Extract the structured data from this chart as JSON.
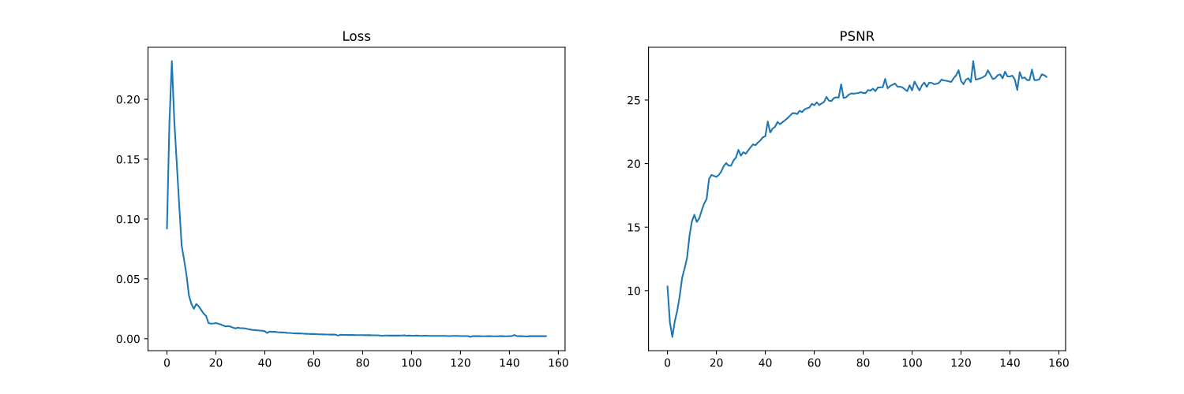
{
  "chart_data": [
    {
      "type": "line",
      "title": "Loss",
      "x": [
        0,
        1,
        2,
        3,
        4,
        5,
        6,
        7,
        8,
        9,
        10,
        11,
        12,
        13,
        14,
        15,
        16,
        17,
        18,
        19,
        20,
        21,
        22,
        23,
        24,
        25,
        26,
        27,
        28,
        29,
        30,
        31,
        32,
        33,
        34,
        35,
        36,
        37,
        38,
        39,
        40,
        41,
        42,
        43,
        44,
        45,
        46,
        47,
        48,
        49,
        50,
        51,
        52,
        53,
        54,
        55,
        56,
        57,
        58,
        59,
        60,
        61,
        62,
        63,
        64,
        65,
        66,
        67,
        68,
        69,
        70,
        71,
        72,
        73,
        74,
        75,
        76,
        77,
        78,
        79,
        80,
        81,
        82,
        83,
        84,
        85,
        86,
        87,
        88,
        89,
        90,
        91,
        92,
        93,
        94,
        95,
        96,
        97,
        98,
        99,
        100,
        101,
        102,
        103,
        104,
        105,
        106,
        107,
        108,
        109,
        110,
        111,
        112,
        113,
        114,
        115,
        116,
        117,
        118,
        119,
        120,
        121,
        122,
        123,
        124,
        125,
        126,
        127,
        128,
        129,
        130,
        131,
        132,
        133,
        134,
        135,
        136,
        137,
        138,
        139,
        140,
        141,
        142,
        143,
        144,
        145,
        146,
        147,
        148,
        149,
        150,
        151,
        152,
        153,
        154,
        155
      ],
      "series": [
        {
          "color": "#1f77b4",
          "values": [
            0.092,
            0.18,
            0.232,
            0.182,
            0.147,
            0.112,
            0.078,
            0.066,
            0.053,
            0.036,
            0.029,
            0.025,
            0.029,
            0.027,
            0.024,
            0.021,
            0.019,
            0.013,
            0.0125,
            0.0127,
            0.013,
            0.0125,
            0.0119,
            0.011,
            0.0103,
            0.0106,
            0.0101,
            0.0092,
            0.0086,
            0.0092,
            0.0088,
            0.0088,
            0.0086,
            0.0081,
            0.0077,
            0.0073,
            0.0072,
            0.007,
            0.0068,
            0.0066,
            0.0062,
            0.0048,
            0.006,
            0.0057,
            0.0057,
            0.0055,
            0.0053,
            0.0052,
            0.0051,
            0.0049,
            0.0048,
            0.0046,
            0.0045,
            0.0044,
            0.0044,
            0.0043,
            0.0042,
            0.0041,
            0.004,
            0.0039,
            0.0039,
            0.0038,
            0.0037,
            0.0037,
            0.0036,
            0.0035,
            0.0035,
            0.0034,
            0.0034,
            0.0033,
            0.0026,
            0.0033,
            0.0032,
            0.0032,
            0.0031,
            0.0031,
            0.0031,
            0.003,
            0.003,
            0.003,
            0.003,
            0.0029,
            0.0029,
            0.0029,
            0.0028,
            0.0028,
            0.0028,
            0.0027,
            0.0024,
            0.0027,
            0.0027,
            0.0026,
            0.0026,
            0.0026,
            0.0026,
            0.0026,
            0.0027,
            0.0028,
            0.0025,
            0.0026,
            0.0025,
            0.0025,
            0.0026,
            0.0025,
            0.0024,
            0.0025,
            0.0025,
            0.0024,
            0.0024,
            0.0024,
            0.0024,
            0.0024,
            0.0023,
            0.0023,
            0.0023,
            0.0022,
            0.0022,
            0.0023,
            0.0024,
            0.0023,
            0.0022,
            0.0022,
            0.0022,
            0.0022,
            0.0015,
            0.0021,
            0.0021,
            0.0021,
            0.0021,
            0.002,
            0.002,
            0.0021,
            0.0021,
            0.002,
            0.002,
            0.002,
            0.0021,
            0.0021,
            0.002,
            0.002,
            0.0021,
            0.0022,
            0.0031,
            0.0022,
            0.0021,
            0.0021,
            0.002,
            0.0019,
            0.0021,
            0.0021,
            0.0021,
            0.0022,
            0.0021,
            0.0021,
            0.0021,
            0.0021
          ]
        }
      ],
      "xlim": [
        -7.75,
        162.75
      ],
      "ylim": [
        -0.01,
        0.2435
      ],
      "xticks": [
        0,
        20,
        40,
        60,
        80,
        100,
        120,
        140,
        160
      ],
      "yticks": [
        {
          "value": 0,
          "label": "0.00"
        },
        {
          "value": 0.05,
          "label": "0.05"
        },
        {
          "value": 0.1,
          "label": "0.10"
        },
        {
          "value": 0.15,
          "label": "0.15"
        },
        {
          "value": 0.2,
          "label": "0.20"
        }
      ]
    },
    {
      "type": "line",
      "title": "PSNR",
      "x": [
        0,
        1,
        2,
        3,
        4,
        5,
        6,
        7,
        8,
        9,
        10,
        11,
        12,
        13,
        14,
        15,
        16,
        17,
        18,
        19,
        20,
        21,
        22,
        23,
        24,
        25,
        26,
        27,
        28,
        29,
        30,
        31,
        32,
        33,
        34,
        35,
        36,
        37,
        38,
        39,
        40,
        41,
        42,
        43,
        44,
        45,
        46,
        47,
        48,
        49,
        50,
        51,
        52,
        53,
        54,
        55,
        56,
        57,
        58,
        59,
        60,
        61,
        62,
        63,
        64,
        65,
        66,
        67,
        68,
        69,
        70,
        71,
        72,
        73,
        74,
        75,
        76,
        77,
        78,
        79,
        80,
        81,
        82,
        83,
        84,
        85,
        86,
        87,
        88,
        89,
        90,
        91,
        92,
        93,
        94,
        95,
        96,
        97,
        98,
        99,
        100,
        101,
        102,
        103,
        104,
        105,
        106,
        107,
        108,
        109,
        110,
        111,
        112,
        113,
        114,
        115,
        116,
        117,
        118,
        119,
        120,
        121,
        122,
        123,
        124,
        125,
        126,
        127,
        128,
        129,
        130,
        131,
        132,
        133,
        134,
        135,
        136,
        137,
        138,
        139,
        140,
        141,
        142,
        143,
        144,
        145,
        146,
        147,
        148,
        149,
        150,
        151,
        152,
        153,
        154,
        155
      ],
      "series": [
        {
          "color": "#1f77b4",
          "values": [
            10.35,
            7.5,
            6.36,
            7.6,
            8.43,
            9.57,
            11.01,
            11.74,
            12.56,
            14.32,
            15.46,
            15.97,
            15.41,
            15.7,
            16.32,
            16.86,
            17.21,
            18.8,
            19.11,
            19.03,
            18.95,
            19.11,
            19.38,
            19.8,
            20.04,
            19.83,
            19.83,
            20.25,
            20.46,
            21.08,
            20.62,
            20.89,
            20.77,
            21.04,
            21.28,
            21.51,
            21.45,
            21.66,
            21.82,
            22.07,
            22.15,
            23.3,
            22.45,
            22.75,
            22.9,
            23.28,
            23.1,
            23.25,
            23.4,
            23.56,
            23.75,
            23.95,
            23.97,
            23.89,
            24.15,
            24.05,
            24.25,
            24.35,
            24.4,
            24.7,
            24.59,
            24.82,
            24.61,
            24.72,
            24.85,
            25.25,
            24.95,
            24.92,
            25.15,
            25.21,
            25.2,
            26.24,
            25.17,
            25.21,
            25.4,
            25.52,
            25.5,
            25.52,
            25.55,
            25.62,
            25.56,
            25.54,
            25.79,
            25.74,
            25.89,
            25.7,
            25.98,
            26.0,
            26.0,
            26.66,
            25.92,
            26.1,
            26.2,
            26.3,
            26.06,
            26.05,
            26.0,
            25.85,
            25.7,
            26.16,
            25.76,
            26.45,
            26.1,
            25.76,
            26.15,
            26.38,
            26.04,
            26.37,
            26.35,
            26.24,
            26.28,
            26.35,
            26.6,
            26.55,
            26.52,
            26.47,
            26.42,
            26.72,
            26.95,
            27.34,
            26.51,
            26.24,
            26.6,
            26.71,
            26.41,
            28.06,
            26.61,
            26.65,
            26.71,
            26.8,
            26.92,
            27.34,
            27.0,
            26.65,
            26.72,
            26.95,
            27.02,
            26.71,
            27.23,
            26.86,
            26.86,
            26.92,
            26.61,
            25.79,
            27.19,
            26.71,
            26.78,
            26.57,
            26.57,
            27.4,
            26.57,
            26.57,
            26.62,
            27.02,
            26.96,
            26.82
          ]
        }
      ],
      "xlim": [
        -7.75,
        162.75
      ],
      "ylim": [
        5.28,
        29.15
      ],
      "xticks": [
        0,
        20,
        40,
        60,
        80,
        100,
        120,
        140,
        160
      ],
      "yticks": [
        10,
        15,
        20,
        25
      ]
    }
  ]
}
